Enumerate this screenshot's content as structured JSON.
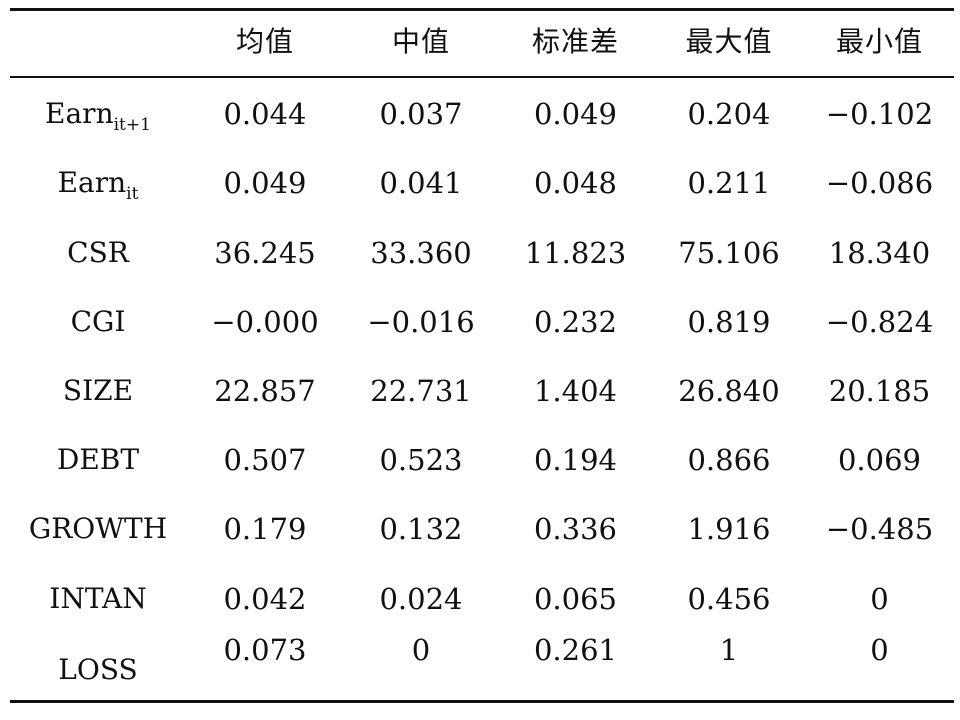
{
  "table": {
    "headers": [
      "",
      "均值",
      "中值",
      "标准差",
      "最大值",
      "最小值"
    ],
    "rows": [
      {
        "name": "Earn",
        "sub": "it+1",
        "values": [
          "0.044",
          "0.037",
          "0.049",
          "0.204",
          "−0.102"
        ]
      },
      {
        "name": "Earn",
        "sub": "it",
        "values": [
          "0.049",
          "0.041",
          "0.048",
          "0.211",
          "−0.086"
        ]
      },
      {
        "name": "CSR",
        "sub": "",
        "values": [
          "36.245",
          "33.360",
          "11.823",
          "75.106",
          "18.340"
        ]
      },
      {
        "name": "CGI",
        "sub": "",
        "values": [
          "−0.000",
          "−0.016",
          "0.232",
          "0.819",
          "−0.824"
        ]
      },
      {
        "name": "SIZE",
        "sub": "",
        "values": [
          "22.857",
          "22.731",
          "1.404",
          "26.840",
          "20.185"
        ]
      },
      {
        "name": "DEBT",
        "sub": "",
        "values": [
          "0.507",
          "0.523",
          "0.194",
          "0.866",
          "0.069"
        ]
      },
      {
        "name": "GROWTH",
        "sub": "",
        "values": [
          "0.179",
          "0.132",
          "0.336",
          "1.916",
          "−0.485"
        ]
      },
      {
        "name": "INTAN",
        "sub": "",
        "values": [
          "0.042",
          "0.024",
          "0.065",
          "0.456",
          "0"
        ]
      },
      {
        "name": "LOSS",
        "sub": "",
        "values": [
          "0.073",
          "0",
          "0.261",
          "1",
          "0"
        ]
      }
    ]
  }
}
